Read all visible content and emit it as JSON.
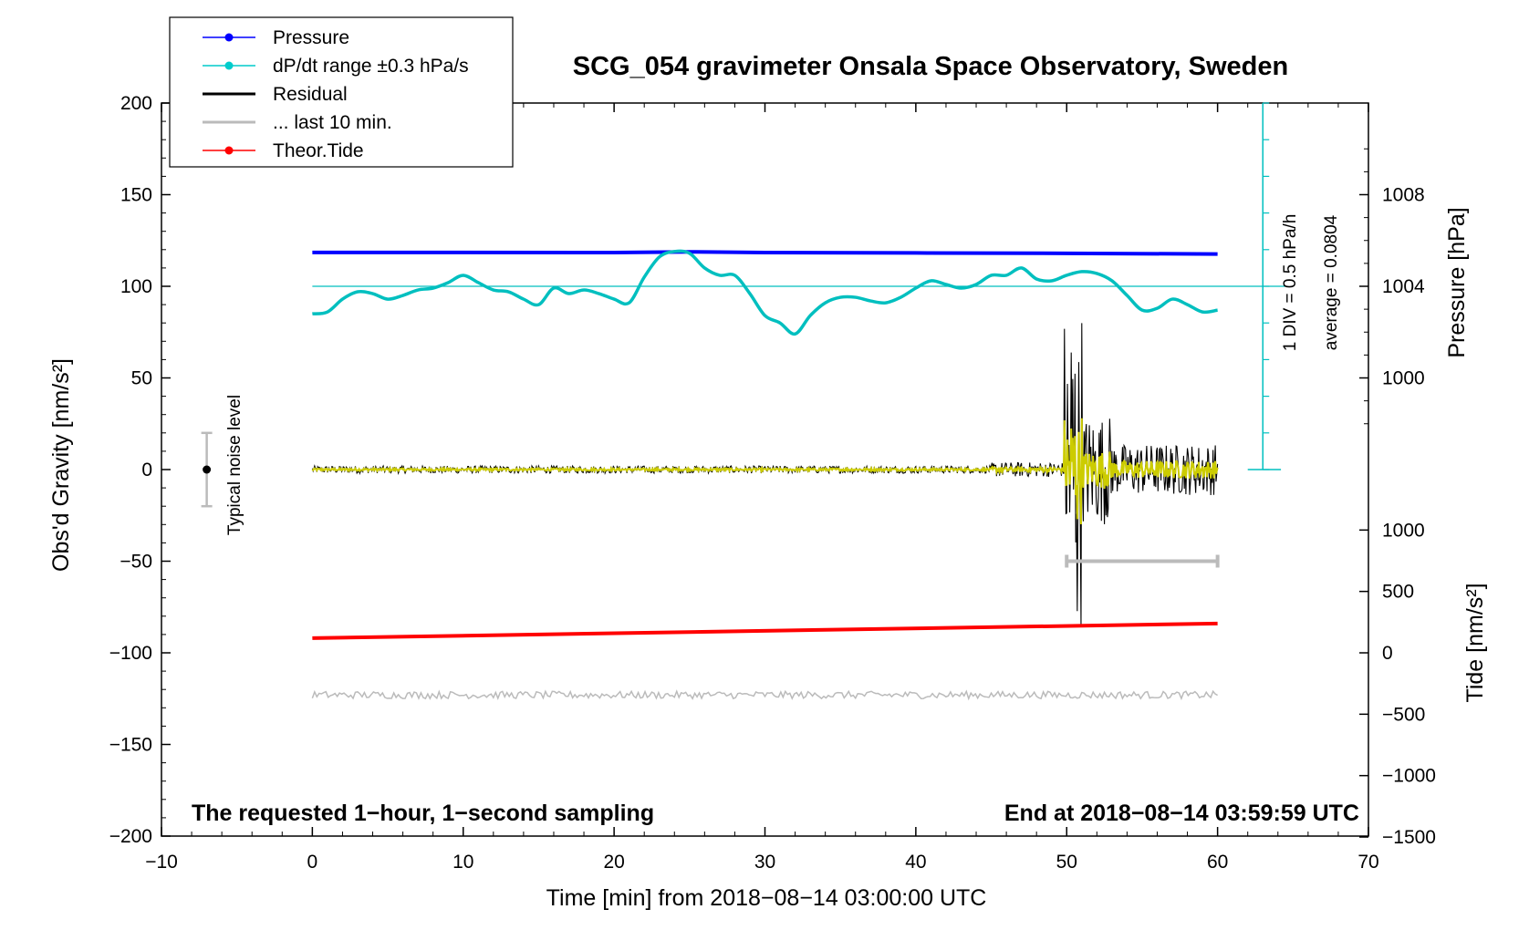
{
  "chart_data": {
    "type": "line",
    "title": "SCG_054 gravimeter Onsala Space Observatory, Sweden",
    "xlabel": "Time [min] from 2018−08−14 03:00:00 UTC",
    "ylabel_left": "Obs'd Gravity [nm/s²]",
    "ylabel_right_pressure": "Pressure [hPa]",
    "ylabel_right_tide": "Tide [nm/s²]",
    "xlim": [
      -10,
      70
    ],
    "ylim": [
      -200,
      200
    ],
    "x_ticks": [
      "−10",
      "0",
      "10",
      "20",
      "30",
      "40",
      "50",
      "60",
      "70"
    ],
    "y_ticks": [
      "200",
      "150",
      "100",
      "50",
      "0",
      "−50",
      "−100",
      "−150",
      "−200"
    ],
    "pressure_ticks": [
      "1008",
      "1004",
      "1000"
    ],
    "tide_ticks": [
      "1000",
      "500",
      "0",
      "−500",
      "−1000",
      "−1500"
    ],
    "legend": [
      {
        "label": "Pressure",
        "color": "#0000ff",
        "marker": true
      },
      {
        "label": "dP/dt range ±0.3 hPa/s",
        "color": "#00cccc",
        "marker": true
      },
      {
        "label": "Residual",
        "color": "#000000",
        "marker": false
      },
      {
        "label": "... last 10 min.",
        "color": "#bbbbbb",
        "marker": false
      },
      {
        "label": "Theor.Tide",
        "color": "#ff0000",
        "marker": true
      }
    ],
    "legend_position": "top-left",
    "noise_label": "Typical noise level",
    "scale_label": "1 DIV = 0.5 hPa/h",
    "average_label": "average = 0.0804",
    "note_left": "The requested 1−hour, 1−second sampling",
    "note_right": "End at 2018−08−14 03:59:59 UTC",
    "series": [
      {
        "name": "Pressure",
        "color": "#0000ff",
        "x": [
          0,
          10,
          20,
          25,
          30,
          40,
          50,
          60
        ],
        "values": [
          118.5,
          118.5,
          118.4,
          118.8,
          118.4,
          118.2,
          118,
          117.6
        ]
      },
      {
        "name": "dP/dt range ±0.3 hPa/s",
        "color": "#00bfbf",
        "x": [
          0,
          1,
          2,
          3,
          4,
          5,
          6,
          7,
          8,
          9,
          10,
          11,
          12,
          13,
          14,
          15,
          16,
          17,
          18,
          19,
          20,
          21,
          22,
          23,
          24,
          25,
          26,
          27,
          28,
          29,
          30,
          31,
          32,
          33,
          34,
          35,
          36,
          37,
          38,
          39,
          40,
          41,
          42,
          43,
          44,
          45,
          46,
          47,
          48,
          49,
          50,
          51,
          52,
          53,
          54,
          55,
          56,
          57,
          58,
          59,
          60
        ],
        "values": [
          85,
          86,
          93,
          97,
          96,
          93,
          95,
          98,
          99,
          102,
          106,
          102,
          98,
          97,
          93,
          90,
          99,
          96,
          98,
          96,
          93,
          91,
          105,
          116,
          119,
          118,
          110,
          106,
          106,
          96,
          84,
          80,
          74,
          84,
          91,
          94,
          94,
          92,
          91,
          94,
          99,
          103,
          101,
          99,
          101,
          106,
          106,
          110,
          104,
          103,
          106,
          108,
          107,
          103,
          95,
          87,
          88,
          93,
          90,
          86,
          87
        ]
      },
      {
        "name": "Theor.Tide",
        "color": "#ff0000",
        "x": [
          0,
          60
        ],
        "values": [
          -92,
          -84
        ]
      }
    ],
    "residual_segments": [
      {
        "from": 0,
        "to": 45,
        "amplitude": 2
      },
      {
        "from": 45,
        "to": 49.8,
        "amplitude": 4
      },
      {
        "from": 49.8,
        "to": 51,
        "amplitude": 62
      },
      {
        "from": 51,
        "to": 53,
        "amplitude": 30
      },
      {
        "from": 53,
        "to": 60,
        "amplitude": 14
      }
    ],
    "tide_reference_line": -123,
    "pressure_reference_line": 100,
    "last_10_min": {
      "from": 50,
      "to": 60,
      "y": -50
    },
    "noise_bar": {
      "x": -7,
      "from": -20,
      "to": 20,
      "center": 0
    }
  }
}
